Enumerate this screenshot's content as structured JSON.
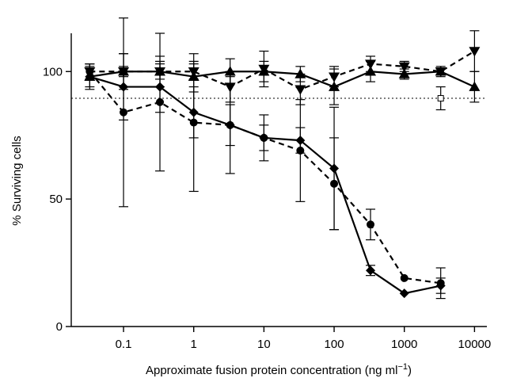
{
  "chart_data": {
    "type": "line",
    "xscale": "log",
    "xlim": [
      0.018,
      15000
    ],
    "ylim": [
      0,
      115
    ],
    "xlabel_main": "Approximate fusion protein concentration (ng ml",
    "xlabel_sup": "−1",
    "xlabel_end": ")",
    "ylabel": "% Surviving cells",
    "x_ticks": [
      {
        "value": 0.1,
        "label": "0.1"
      },
      {
        "value": 1,
        "label": "1"
      },
      {
        "value": 10,
        "label": "10"
      },
      {
        "value": 100,
        "label": "100"
      },
      {
        "value": 1000,
        "label": "1000"
      },
      {
        "value": 10000,
        "label": "10000"
      }
    ],
    "y_ticks": [
      {
        "value": 0,
        "label": "0"
      },
      {
        "value": 50,
        "label": "50"
      },
      {
        "value": 100,
        "label": "100"
      }
    ],
    "reference_line": {
      "y": 89.5,
      "style": "dotted"
    },
    "reference_point": {
      "x": 3300,
      "y": 89.5,
      "err": 4.5,
      "marker": "open-square"
    },
    "series": [
      {
        "marker": "triangle-up",
        "line": "solid",
        "x": [
          0.033,
          0.1,
          0.33,
          1,
          3.3,
          10,
          33,
          100,
          330,
          1000,
          3300,
          10000
        ],
        "y": [
          98,
          100,
          100,
          98,
          100,
          100,
          99,
          94,
          100,
          99,
          100,
          94
        ],
        "err": [
          4,
          7,
          6,
          6,
          5,
          4,
          3,
          7,
          4,
          2,
          2,
          6
        ]
      },
      {
        "marker": "triangle-down",
        "line": "dashed",
        "x": [
          0.033,
          0.1,
          0.33,
          1,
          3.3,
          10,
          33,
          100,
          330,
          1000,
          3300,
          10000
        ],
        "y": [
          100,
          100,
          100,
          100,
          94,
          101,
          93,
          98,
          103,
          102,
          100,
          108
        ],
        "err": [
          3,
          2,
          3,
          3,
          6,
          7,
          6,
          4,
          3,
          2,
          1,
          8
        ]
      },
      {
        "marker": "diamond",
        "line": "solid",
        "x": [
          0.033,
          0.1,
          0.33,
          1,
          3.3,
          10,
          33,
          100,
          330,
          1000,
          3300
        ],
        "y": [
          98,
          94,
          94,
          84,
          79,
          74,
          73,
          62,
          22,
          13,
          16
        ],
        "err": [
          5,
          13,
          10,
          10,
          19,
          9,
          5,
          24,
          2,
          0,
          3
        ]
      },
      {
        "marker": "circle",
        "line": "dashed",
        "x": [
          0.033,
          0.1,
          0.33,
          1,
          3.3,
          10,
          33,
          100,
          330,
          1000,
          3300
        ],
        "y": [
          100,
          84,
          88,
          80,
          79,
          74,
          69,
          56,
          40,
          19,
          17
        ],
        "err": [
          3,
          37,
          27,
          27,
          8,
          5,
          20,
          18,
          6,
          0,
          6
        ]
      }
    ]
  }
}
